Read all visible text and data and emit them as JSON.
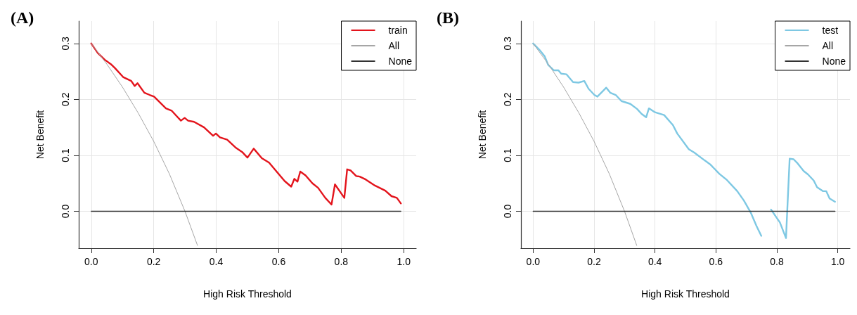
{
  "chart_data": [
    {
      "type": "line",
      "title": "(A)",
      "xlabel": "High Risk Threshold",
      "ylabel": "Net Benefit",
      "xlim": [
        -0.04,
        1.04
      ],
      "ylim": [
        -0.066,
        0.34
      ],
      "xticks": [
        {
          "value": 0,
          "label": "0.0"
        },
        {
          "value": 0.2,
          "label": "0.2"
        },
        {
          "value": 0.4,
          "label": "0.4"
        },
        {
          "value": 0.6,
          "label": "0.6"
        },
        {
          "value": 0.8,
          "label": "0.8"
        },
        {
          "value": 1,
          "label": "1.0"
        }
      ],
      "yticks": [
        {
          "value": 0,
          "label": "0.0"
        },
        {
          "value": 0.1,
          "label": "0.1"
        },
        {
          "value": 0.2,
          "label": "0.2"
        },
        {
          "value": 0.3,
          "label": "0.3"
        }
      ],
      "grid": true,
      "legend": "top right",
      "marker": "none",
      "line_style": "solid",
      "series": [
        {
          "name": "train",
          "color": "#e3141c",
          "x": [
            0,
            0.021,
            0.043,
            0.065,
            0.076,
            0.102,
            0.128,
            0.139,
            0.148,
            0.17,
            0.187,
            0.201,
            0.239,
            0.257,
            0.287,
            0.299,
            0.31,
            0.329,
            0.361,
            0.39,
            0.399,
            0.412,
            0.435,
            0.464,
            0.483,
            0.5,
            0.52,
            0.546,
            0.569,
            0.619,
            0.64,
            0.65,
            0.66,
            0.669,
            0.686,
            0.708,
            0.726,
            0.749,
            0.769,
            0.78,
            0.81,
            0.819,
            0.83,
            0.848,
            0.859,
            0.878,
            0.908,
            0.941,
            0.961,
            0.978,
            0.991
          ],
          "values": [
            0.3,
            0.283,
            0.271,
            0.262,
            0.256,
            0.24,
            0.233,
            0.224,
            0.229,
            0.212,
            0.208,
            0.205,
            0.184,
            0.18,
            0.162,
            0.167,
            0.162,
            0.16,
            0.15,
            0.135,
            0.139,
            0.132,
            0.128,
            0.113,
            0.106,
            0.096,
            0.112,
            0.095,
            0.087,
            0.054,
            0.044,
            0.058,
            0.053,
            0.071,
            0.064,
            0.05,
            0.042,
            0.024,
            0.012,
            0.048,
            0.024,
            0.075,
            0.073,
            0.063,
            0.062,
            0.057,
            0.046,
            0.037,
            0.027,
            0.024,
            0.014
          ]
        },
        {
          "name": "All",
          "color": "#a6a6a6",
          "x": [
            0,
            0.05,
            0.1,
            0.15,
            0.2,
            0.25,
            0.3,
            0.34
          ],
          "values": [
            0.3,
            0.263,
            0.222,
            0.176,
            0.125,
            0.067,
            0,
            -0.061
          ]
        },
        {
          "name": "None",
          "color": "#333333",
          "x": [
            0,
            0.991
          ],
          "values": [
            0,
            0
          ]
        }
      ]
    },
    {
      "type": "line",
      "title": "(B)",
      "xlabel": "High Risk Threshold",
      "ylabel": "Net Benefit",
      "xlim": [
        -0.04,
        1.04
      ],
      "ylim": [
        -0.066,
        0.34
      ],
      "xticks": [
        {
          "value": 0,
          "label": "0.0"
        },
        {
          "value": 0.2,
          "label": "0.2"
        },
        {
          "value": 0.4,
          "label": "0.4"
        },
        {
          "value": 0.6,
          "label": "0.6"
        },
        {
          "value": 0.8,
          "label": "0.8"
        },
        {
          "value": 1,
          "label": "1.0"
        }
      ],
      "yticks": [
        {
          "value": 0,
          "label": "0.0"
        },
        {
          "value": 0.1,
          "label": "0.1"
        },
        {
          "value": 0.2,
          "label": "0.2"
        },
        {
          "value": 0.3,
          "label": "0.3"
        }
      ],
      "grid": true,
      "legend": "top right",
      "marker": "none",
      "line_style": "solid",
      "series": [
        {
          "name": "test",
          "color": "#7ec8e3",
          "x": [
            0,
            0.02,
            0.038,
            0.049,
            0.068,
            0.083,
            0.092,
            0.109,
            0.131,
            0.149,
            0.168,
            0.182,
            0.201,
            0.211,
            0.24,
            0.253,
            0.271,
            0.29,
            0.319,
            0.341,
            0.356,
            0.371,
            0.38,
            0.4,
            0.43,
            0.459,
            0.473,
            0.511,
            0.529,
            0.563,
            0.581,
            0.611,
            0.636,
            0.67,
            0.692,
            0.714,
            0.733,
            0.749,
            0.758,
            0.772,
            0.781,
            0.81,
            0.83,
            0.842,
            0.855,
            0.866,
            0.888,
            0.902,
            0.921,
            0.932,
            0.951,
            0.962,
            0.973,
            0.991
          ],
          "values": [
            0.3,
            0.289,
            0.277,
            0.262,
            0.252,
            0.252,
            0.246,
            0.245,
            0.231,
            0.23,
            0.233,
            0.219,
            0.208,
            0.205,
            0.221,
            0.212,
            0.208,
            0.197,
            0.192,
            0.183,
            0.174,
            0.168,
            0.184,
            0.177,
            0.172,
            0.154,
            0.139,
            0.111,
            0.105,
            0.091,
            0.084,
            0.067,
            0.056,
            0.036,
            0.019,
            -0.002,
            -0.026,
            -0.044,
            null,
            null,
            0.003,
            -0.02,
            -0.048,
            0.094,
            0.093,
            0.087,
            0.072,
            0.066,
            0.055,
            0.043,
            0.036,
            0.036,
            0.023,
            0.017
          ]
        },
        {
          "name": "All",
          "color": "#a6a6a6",
          "x": [
            0,
            0.05,
            0.1,
            0.15,
            0.2,
            0.25,
            0.3,
            0.34
          ],
          "values": [
            0.3,
            0.263,
            0.222,
            0.176,
            0.125,
            0.067,
            0,
            -0.061
          ]
        },
        {
          "name": "None",
          "color": "#333333",
          "x": [
            0,
            0.991
          ],
          "values": [
            0,
            0
          ]
        }
      ]
    }
  ]
}
